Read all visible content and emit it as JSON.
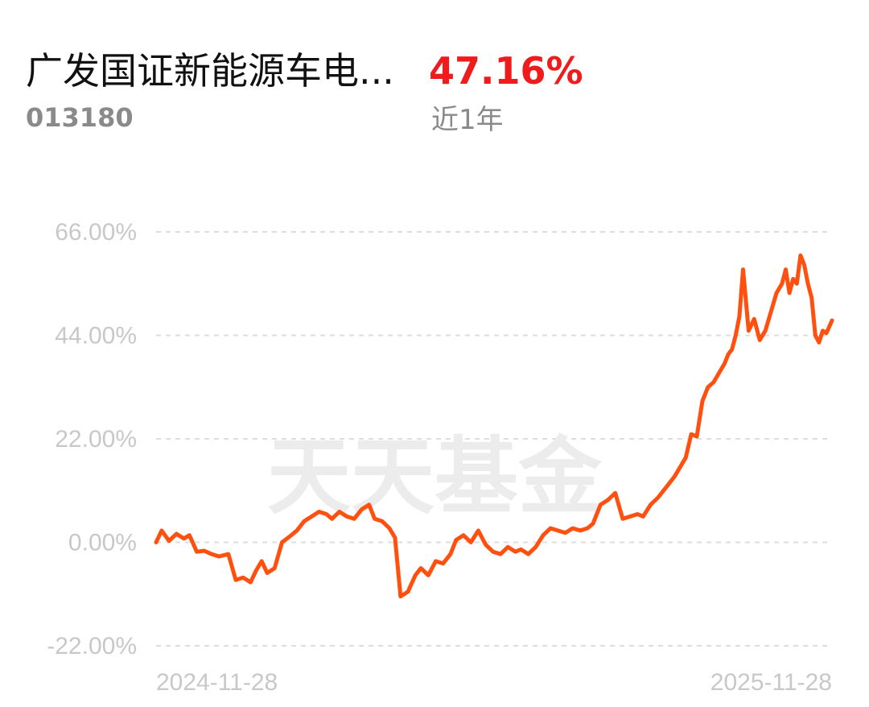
{
  "header": {
    "fund_name": "广发国证新能源车电...",
    "fund_code": "013180",
    "return_value": "47.16%",
    "period_label": "近1年"
  },
  "watermark": "天天基金",
  "colors": {
    "line": "#ff5010",
    "return_positive": "#ee1c1c",
    "grid": "#dddddd",
    "tick_text": "#c8c8c8",
    "secondary_text": "#8a8a8a",
    "watermark": "#ececec"
  },
  "chart_data": {
    "type": "line",
    "title": "",
    "xlabel": "",
    "ylabel": "",
    "ylim": [
      -22,
      66
    ],
    "y_ticks": [
      66,
      44,
      22,
      0,
      -22
    ],
    "y_tick_labels": [
      "66.00%",
      "44.00%",
      "22.00%",
      "0.00%",
      "-22.00%"
    ],
    "x_tick_labels": [
      "2024-11-28",
      "2025-11-28"
    ],
    "grid": true,
    "grid_style": "dashed horizontal",
    "legend": "none",
    "x_range": [
      "2024-11-28",
      "2025-11-28"
    ],
    "series": [
      {
        "x": [
          "2024-11-28",
          "2024-12-01",
          "2024-12-05",
          "2024-12-09",
          "2024-12-13",
          "2024-12-16",
          "2024-12-20",
          "2024-12-24",
          "2024-12-28",
          "2025-01-01",
          "2025-01-06",
          "2025-01-10",
          "2025-01-14",
          "2025-01-18",
          "2025-01-21",
          "2025-01-24",
          "2025-01-27",
          "2025-01-31",
          "2025-02-04",
          "2025-02-08",
          "2025-02-12",
          "2025-02-16",
          "2025-02-20",
          "2025-02-24",
          "2025-02-28",
          "2025-03-03",
          "2025-03-07",
          "2025-03-11",
          "2025-03-15",
          "2025-03-19",
          "2025-03-23",
          "2025-03-26",
          "2025-03-30",
          "2025-04-03",
          "2025-04-06",
          "2025-04-09",
          "2025-04-13",
          "2025-04-17",
          "2025-04-20",
          "2025-04-24",
          "2025-04-28",
          "2025-05-02",
          "2025-05-06",
          "2025-05-09",
          "2025-05-13",
          "2025-05-17",
          "2025-05-21",
          "2025-05-25",
          "2025-05-29",
          "2025-06-02",
          "2025-06-06",
          "2025-06-10",
          "2025-06-13",
          "2025-06-17",
          "2025-06-21",
          "2025-06-25",
          "2025-06-29",
          "2025-07-03",
          "2025-07-07",
          "2025-07-11",
          "2025-07-15",
          "2025-07-19",
          "2025-07-22",
          "2025-07-26",
          "2025-07-30",
          "2025-08-03",
          "2025-08-07",
          "2025-08-11",
          "2025-08-15",
          "2025-08-18",
          "2025-08-22",
          "2025-08-26",
          "2025-08-29",
          "2025-09-01",
          "2025-09-04",
          "2025-09-07",
          "2025-09-10",
          "2025-09-13",
          "2025-09-16",
          "2025-09-19",
          "2025-09-22",
          "2025-09-25",
          "2025-09-28",
          "2025-10-01",
          "2025-10-03",
          "2025-10-05",
          "2025-10-07",
          "2025-10-09",
          "2025-10-11",
          "2025-10-14",
          "2025-10-17",
          "2025-10-20",
          "2025-10-23",
          "2025-10-26",
          "2025-10-29",
          "2025-11-01",
          "2025-11-03",
          "2025-11-05",
          "2025-11-07",
          "2025-11-09",
          "2025-11-11",
          "2025-11-13",
          "2025-11-15",
          "2025-11-17",
          "2025-11-19",
          "2025-11-21",
          "2025-11-23",
          "2025-11-25",
          "2025-11-28"
        ],
        "y": [
          0,
          2.5,
          0.3,
          1.8,
          0.8,
          1.5,
          -2.0,
          -1.8,
          -2.5,
          -3.0,
          -2.5,
          -8.0,
          -7.5,
          -8.5,
          -6.0,
          -4.0,
          -6.5,
          -5.5,
          0,
          1.2,
          2.5,
          4.5,
          5.5,
          6.5,
          6.0,
          5.0,
          6.5,
          5.5,
          5.0,
          7.0,
          8.0,
          5.0,
          4.5,
          3.0,
          1.0,
          -11.5,
          -10.5,
          -7.0,
          -5.5,
          -7.0,
          -4.0,
          -4.5,
          -2.5,
          0.5,
          1.5,
          0,
          2.5,
          -0.5,
          -2.0,
          -2.5,
          -1.0,
          -2.0,
          -1.5,
          -2.5,
          -1.0,
          1.5,
          3.0,
          2.5,
          2.0,
          3.0,
          2.5,
          3.0,
          4.0,
          8.0,
          9.0,
          10.5,
          5.0,
          5.5,
          6.0,
          5.5,
          8.0,
          9.5,
          11.0,
          12.5,
          14.0,
          16.0,
          18.0,
          23.0,
          22.5,
          30.0,
          33.0,
          34.0,
          36.0,
          38.0,
          40.0,
          41.0,
          44.0,
          48.0,
          58.0,
          45.0,
          47.5,
          43.0,
          45.0,
          49.0,
          53.0,
          55.0,
          58.0,
          53.0,
          56.0,
          55.0,
          61.0,
          59.0,
          55.0,
          52.0,
          44.0,
          42.5,
          45.0,
          44.5,
          47.16
        ]
      }
    ]
  }
}
